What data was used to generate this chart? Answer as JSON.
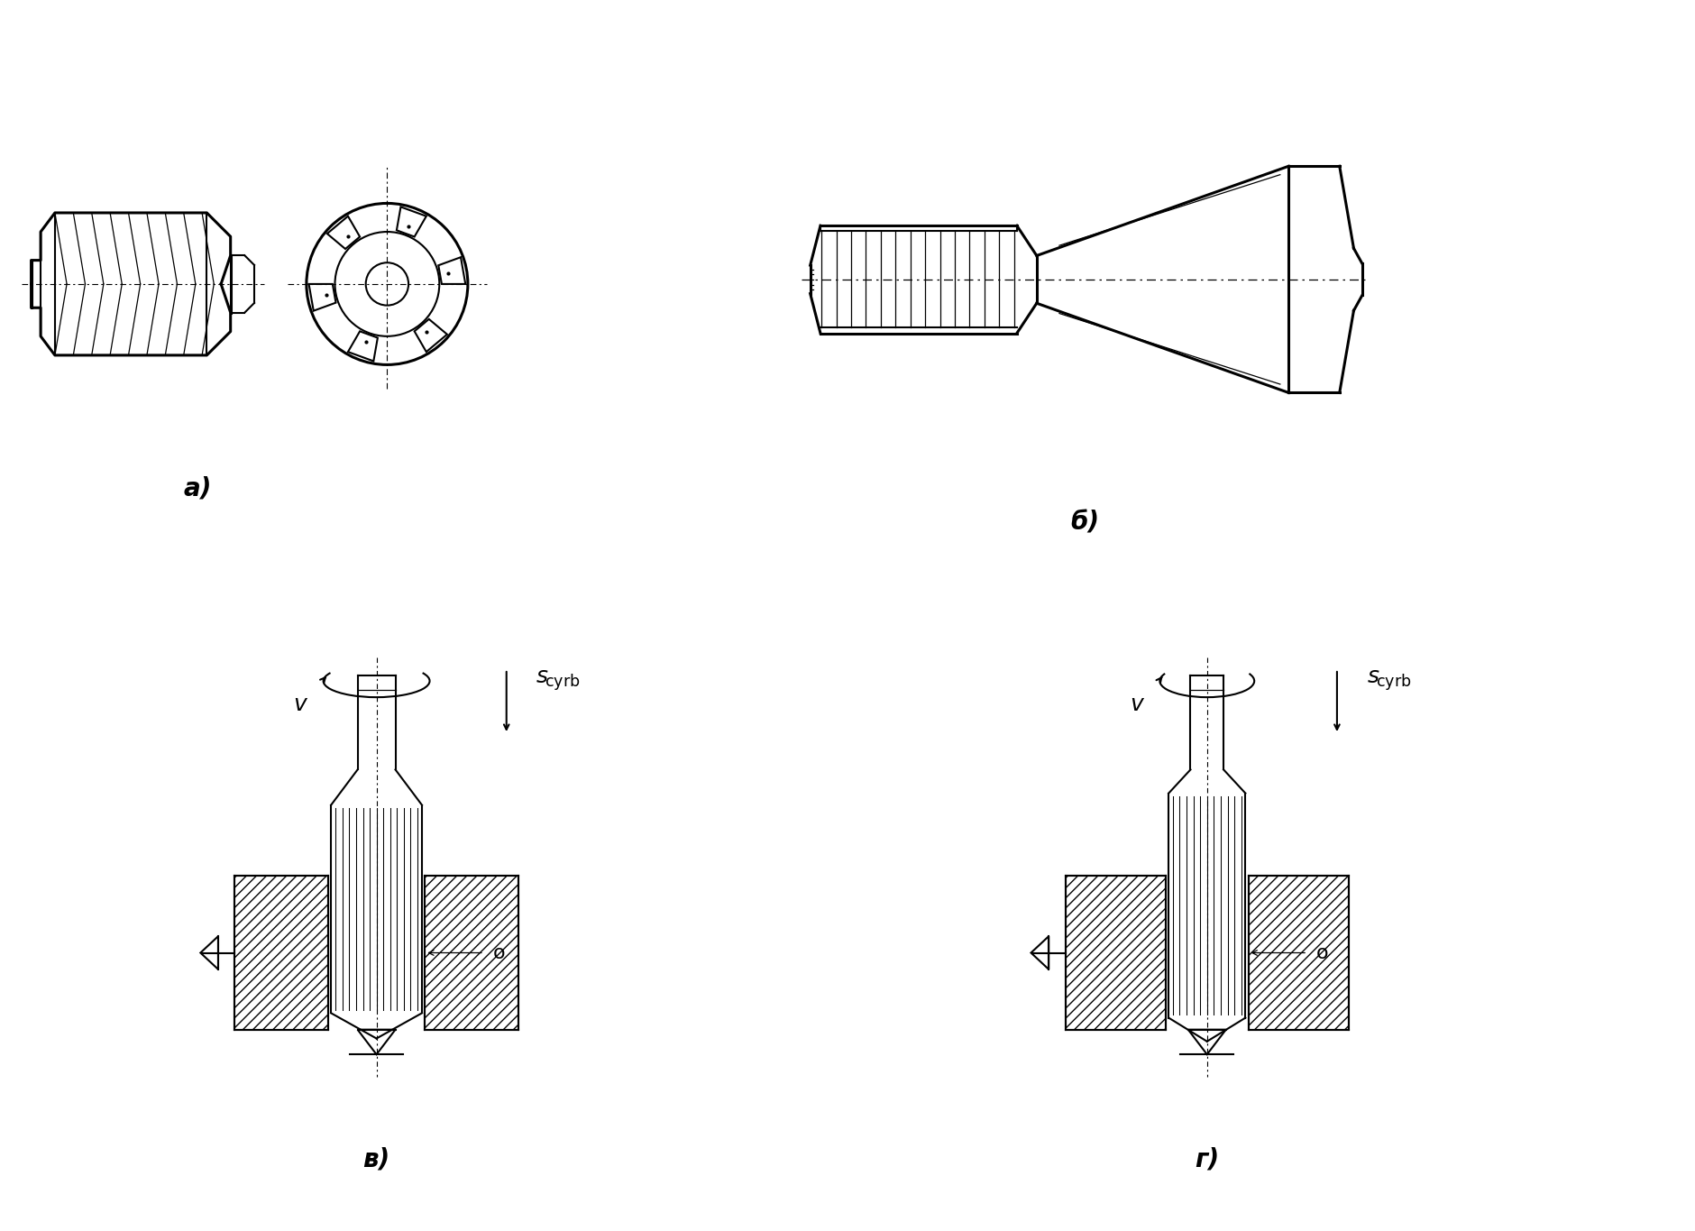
{
  "bg_color": "#ffffff",
  "line_color": "#000000",
  "labels": {
    "a": "а)",
    "b": "б)",
    "c": "в)",
    "d": "г)"
  },
  "label_fontsize": 20,
  "annotation_fontsize": 18
}
